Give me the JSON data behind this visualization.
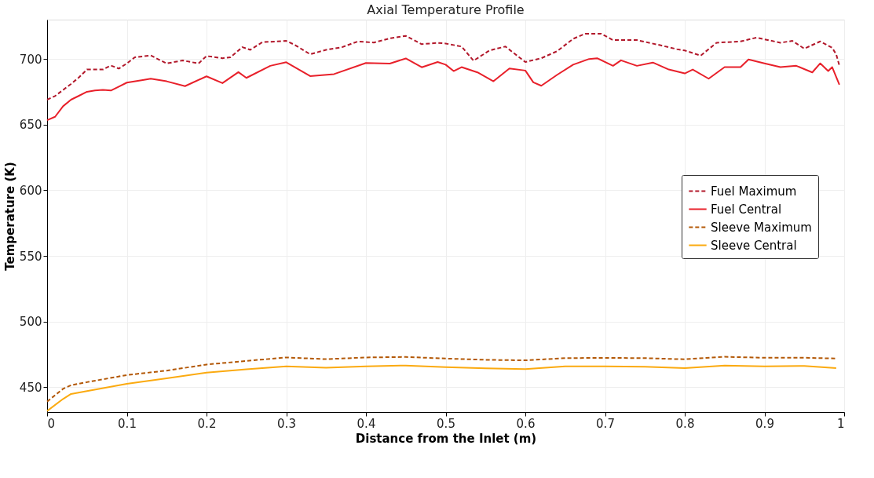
{
  "chart_data": {
    "type": "line",
    "title": "Axial Temperature Profile",
    "xlabel": "Distance from the Inlet (m)",
    "ylabel": "Temperature (K)",
    "xlim": [
      0,
      1
    ],
    "xticks": [
      0,
      0.1,
      0.2,
      0.3,
      0.4,
      0.5,
      0.6,
      0.7,
      0.8,
      0.9,
      1
    ],
    "ylim": [
      431,
      730
    ],
    "yticks": [
      450,
      500,
      550,
      600,
      650,
      700
    ],
    "grid": true,
    "legend": "right",
    "marker": "none",
    "series": [
      {
        "name": "Fuel Maximum",
        "color": "#b2182b",
        "line_style": "dashed",
        "x": [
          0,
          0.01,
          0.03,
          0.04,
          0.05,
          0.07,
          0.08,
          0.09,
          0.1,
          0.11,
          0.13,
          0.15,
          0.17,
          0.19,
          0.2,
          0.22,
          0.23,
          0.245,
          0.255,
          0.27,
          0.3,
          0.31,
          0.33,
          0.35,
          0.37,
          0.39,
          0.41,
          0.43,
          0.45,
          0.47,
          0.49,
          0.5,
          0.52,
          0.535,
          0.555,
          0.575,
          0.6,
          0.62,
          0.64,
          0.66,
          0.675,
          0.695,
          0.71,
          0.74,
          0.77,
          0.79,
          0.8,
          0.82,
          0.84,
          0.87,
          0.89,
          0.92,
          0.935,
          0.95,
          0.97,
          0.985,
          0.99,
          0.994
        ],
        "values": [
          669,
          671.8,
          681,
          686,
          692,
          692,
          695,
          692.7,
          696.6,
          701.3,
          702.7,
          696.6,
          698.9,
          696.6,
          702.3,
          700.6,
          701.3,
          709,
          707,
          712.8,
          713.8,
          711,
          703.6,
          707,
          709,
          713.4,
          712.5,
          715.7,
          717.6,
          711.3,
          712.3,
          711.8,
          709.5,
          698.7,
          706.5,
          709.5,
          697.7,
          700.6,
          706,
          715.4,
          719.3,
          719.3,
          714.4,
          714.4,
          710.4,
          707.5,
          706.5,
          702.6,
          712.4,
          713.4,
          716.3,
          712.4,
          713.8,
          707.9,
          713.4,
          708.5,
          703.6,
          695
        ]
      },
      {
        "name": "Fuel Central",
        "color": "#e8202a",
        "line_style": "solid",
        "x": [
          0,
          0.01,
          0.02,
          0.03,
          0.04,
          0.05,
          0.06,
          0.07,
          0.08,
          0.09,
          0.1,
          0.12,
          0.13,
          0.15,
          0.173,
          0.2,
          0.22,
          0.24,
          0.25,
          0.28,
          0.3,
          0.33,
          0.36,
          0.4,
          0.43,
          0.45,
          0.47,
          0.49,
          0.5,
          0.51,
          0.52,
          0.54,
          0.56,
          0.58,
          0.6,
          0.61,
          0.62,
          0.64,
          0.66,
          0.68,
          0.69,
          0.71,
          0.72,
          0.74,
          0.76,
          0.78,
          0.8,
          0.81,
          0.83,
          0.85,
          0.87,
          0.88,
          0.9,
          0.92,
          0.94,
          0.96,
          0.97,
          0.98,
          0.985,
          0.994
        ],
        "values": [
          653.4,
          656,
          664,
          669,
          672,
          675,
          676,
          676.5,
          676,
          679,
          682,
          684,
          685,
          683,
          679.3,
          686.8,
          681.6,
          690,
          685.6,
          694.8,
          697.5,
          687,
          688.5,
          697,
          696.5,
          700.4,
          693.7,
          697.7,
          695.7,
          690.8,
          693.8,
          689.8,
          683,
          692.8,
          691.2,
          682.2,
          679.6,
          688,
          695.7,
          700,
          700.6,
          694.8,
          699,
          694.8,
          697.3,
          692,
          689,
          692,
          685,
          693.8,
          693.8,
          699.7,
          696.7,
          693.8,
          694.8,
          689.8,
          696.7,
          690.8,
          693.8,
          680.5
        ]
      },
      {
        "name": "Sleeve Maximum",
        "color": "#b35806",
        "line_style": "dashed",
        "x": [
          0,
          0.02,
          0.03,
          0.05,
          0.1,
          0.15,
          0.2,
          0.25,
          0.3,
          0.35,
          0.4,
          0.45,
          0.5,
          0.55,
          0.6,
          0.65,
          0.7,
          0.75,
          0.8,
          0.85,
          0.9,
          0.95,
          0.99
        ],
        "values": [
          439,
          448.7,
          451.5,
          453.8,
          459.2,
          462.6,
          467.2,
          470,
          472.6,
          471.3,
          472.6,
          473,
          471.8,
          470.8,
          470.4,
          472.1,
          472.3,
          472.1,
          471.2,
          473.1,
          472.4,
          472.4,
          471.8
        ]
      },
      {
        "name": "Sleeve Central",
        "color": "#fbaa10",
        "line_style": "solid",
        "x": [
          0,
          0.02,
          0.03,
          0.05,
          0.1,
          0.15,
          0.2,
          0.25,
          0.3,
          0.35,
          0.4,
          0.45,
          0.5,
          0.55,
          0.6,
          0.65,
          0.7,
          0.75,
          0.8,
          0.85,
          0.9,
          0.95,
          0.99
        ],
        "values": [
          431.8,
          441,
          444.8,
          447,
          452.5,
          456.7,
          461,
          463.6,
          465.9,
          464.8,
          465.9,
          466.5,
          465.3,
          464.3,
          463.7,
          465.9,
          465.9,
          465.5,
          464.5,
          466.5,
          465.9,
          466.1,
          464.5
        ]
      }
    ]
  }
}
